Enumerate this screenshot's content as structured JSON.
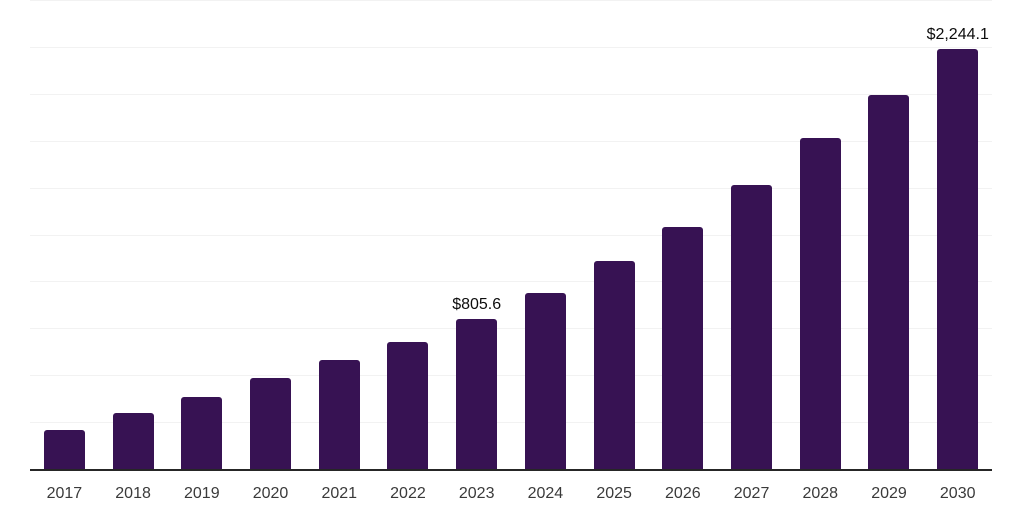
{
  "chart_data": {
    "type": "bar",
    "categories": [
      "2017",
      "2018",
      "2019",
      "2020",
      "2021",
      "2022",
      "2023",
      "2024",
      "2025",
      "2026",
      "2027",
      "2028",
      "2029",
      "2030"
    ],
    "values": [
      214,
      304,
      391,
      489,
      587,
      683,
      805.6,
      943,
      1113,
      1295,
      1521,
      1770,
      2001,
      2244.1
    ],
    "data_labels": [
      {
        "category": "2023",
        "text": "$805.6"
      },
      {
        "category": "2030",
        "text": "$2,244.1"
      }
    ],
    "ylim": [
      0,
      2500
    ],
    "gridline_step": 250,
    "grid": "horizontal-only",
    "legend_position": "none",
    "xlabel": "",
    "ylabel": "",
    "colors": {
      "bar": "#371253",
      "gridline": "#f2f2f2",
      "axis_line": "#262626",
      "tick_label": "#3a3a3a",
      "data_label": "#0d0d0d",
      "background": "#ffffff"
    }
  }
}
